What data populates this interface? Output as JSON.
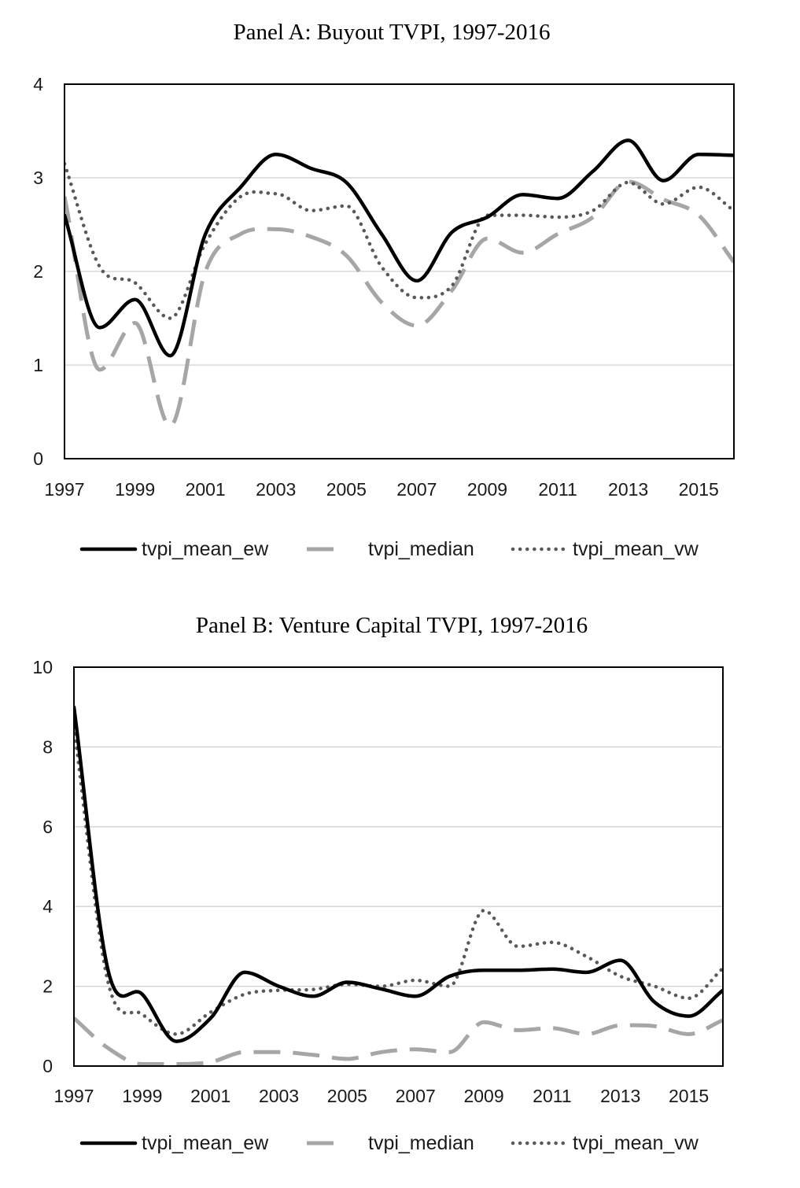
{
  "chart_data": [
    {
      "type": "line",
      "title": "Panel A: Buyout TVPI, 1997-2016",
      "xlabel": "",
      "ylabel": "",
      "xlim": [
        1997,
        2016
      ],
      "ylim": [
        0,
        4
      ],
      "x_ticks": [
        "1997",
        "1999",
        "2001",
        "2003",
        "2005",
        "2007",
        "2009",
        "2011",
        "2013",
        "2015"
      ],
      "y_ticks": [
        "0",
        "1",
        "2",
        "3",
        "4"
      ],
      "grid": true,
      "legend": "bottom",
      "x": [
        1997,
        1998,
        1999,
        2000,
        2001,
        2002,
        2003,
        2004,
        2005,
        2006,
        2007,
        2008,
        2009,
        2010,
        2011,
        2012,
        2013,
        2014,
        2015,
        2016
      ],
      "series": [
        {
          "name": "tvpi_mean_ew",
          "color": "#000000",
          "style": "solid",
          "values": [
            2.6,
            1.4,
            1.7,
            1.1,
            2.4,
            2.9,
            3.25,
            3.1,
            2.95,
            2.4,
            1.9,
            2.42,
            2.58,
            2.82,
            2.78,
            3.07,
            3.4,
            2.97,
            3.25,
            3.24
          ]
        },
        {
          "name": "tvpi_median",
          "color": "#a6a6a6",
          "style": "dashed",
          "values": [
            2.8,
            0.95,
            1.45,
            0.35,
            2.0,
            2.4,
            2.45,
            2.37,
            2.17,
            1.67,
            1.42,
            1.8,
            2.35,
            2.2,
            2.4,
            2.58,
            2.96,
            2.77,
            2.6,
            2.1
          ]
        },
        {
          "name": "tvpi_mean_vw",
          "color": "#595959",
          "style": "dotted",
          "values": [
            3.15,
            2.05,
            1.88,
            1.5,
            2.3,
            2.8,
            2.83,
            2.65,
            2.7,
            2.05,
            1.72,
            1.85,
            2.6,
            2.6,
            2.58,
            2.65,
            2.95,
            2.72,
            2.9,
            2.65
          ]
        }
      ]
    },
    {
      "type": "line",
      "title": "Panel B: Venture Capital TVPI, 1997-2016",
      "xlabel": "",
      "ylabel": "",
      "xlim": [
        1997,
        2016
      ],
      "ylim": [
        0,
        10
      ],
      "x_ticks": [
        "1997",
        "1999",
        "2001",
        "2003",
        "2005",
        "2007",
        "2009",
        "2011",
        "2013",
        "2015"
      ],
      "y_ticks": [
        "0",
        "2",
        "4",
        "6",
        "8",
        "10"
      ],
      "grid": true,
      "legend": "bottom",
      "x": [
        1997,
        1998,
        1999,
        2000,
        2001,
        2002,
        2003,
        2004,
        2005,
        2006,
        2007,
        2008,
        2009,
        2010,
        2011,
        2012,
        2013,
        2014,
        2015,
        2016
      ],
      "series": [
        {
          "name": "tvpi_mean_ew",
          "color": "#000000",
          "style": "solid",
          "values": [
            9.0,
            2.4,
            1.8,
            0.62,
            1.2,
            2.35,
            2.0,
            1.75,
            2.1,
            1.93,
            1.75,
            2.25,
            2.4,
            2.4,
            2.43,
            2.35,
            2.65,
            1.6,
            1.25,
            1.9
          ]
        },
        {
          "name": "tvpi_median",
          "color": "#a6a6a6",
          "style": "dashed",
          "values": [
            1.2,
            0.45,
            0.05,
            0.05,
            0.1,
            0.35,
            0.35,
            0.28,
            0.18,
            0.35,
            0.42,
            0.35,
            1.1,
            0.9,
            0.95,
            0.8,
            1.02,
            1.0,
            0.8,
            1.15
          ]
        },
        {
          "name": "tvpi_mean_vw",
          "color": "#595959",
          "style": "dotted",
          "values": [
            8.5,
            2.1,
            1.3,
            0.8,
            1.35,
            1.8,
            1.9,
            1.92,
            2.05,
            2.0,
            2.15,
            2.0,
            3.9,
            3.0,
            3.1,
            2.75,
            2.25,
            2.0,
            1.7,
            2.45
          ]
        }
      ]
    }
  ]
}
